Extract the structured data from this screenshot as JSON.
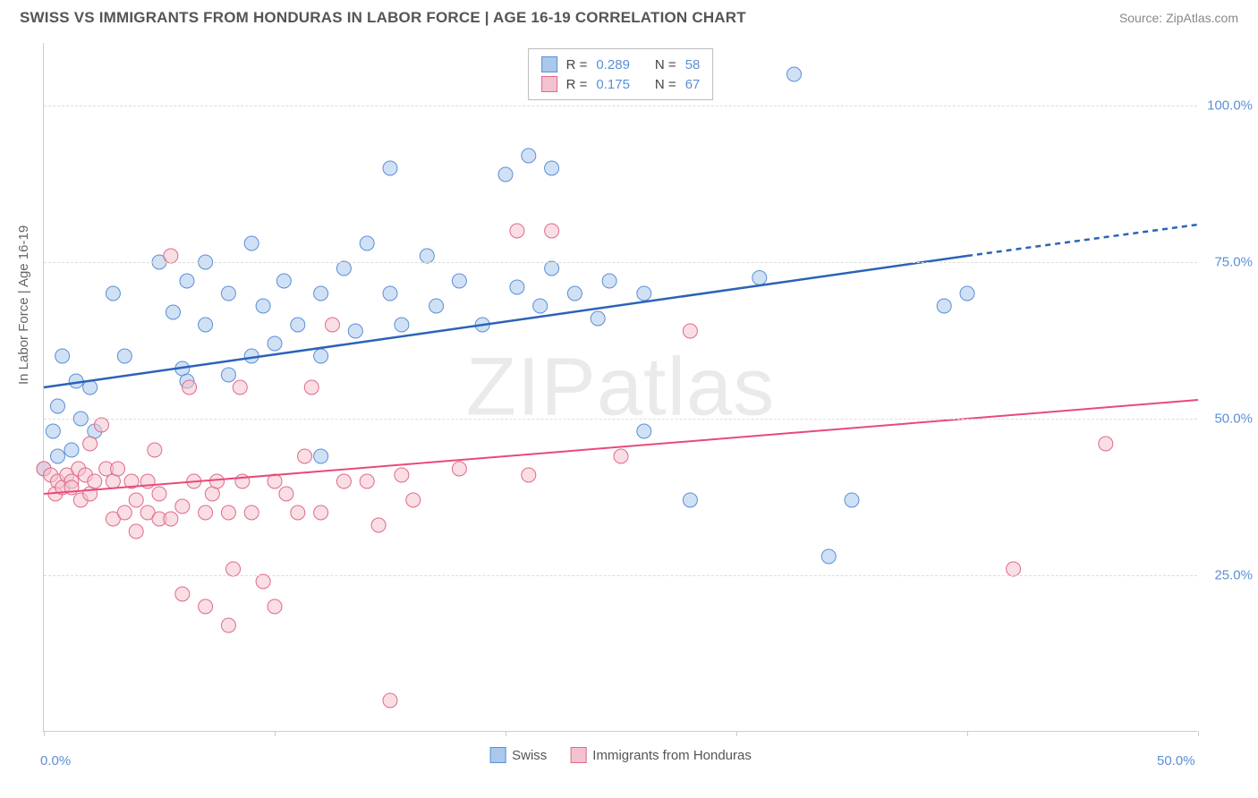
{
  "title": "SWISS VS IMMIGRANTS FROM HONDURAS IN LABOR FORCE | AGE 16-19 CORRELATION CHART",
  "source": "Source: ZipAtlas.com",
  "watermark": "ZIPatlas",
  "y_axis_title": "In Labor Force | Age 16-19",
  "chart": {
    "type": "scatter",
    "xlim": [
      0,
      50
    ],
    "ylim": [
      0,
      110
    ],
    "x_ticks": [
      0,
      10,
      20,
      30,
      40,
      50
    ],
    "x_tick_labels_shown": {
      "0": "0.0%",
      "50": "50.0%"
    },
    "y_gridlines": [
      25,
      50,
      75,
      100
    ],
    "y_tick_labels": {
      "25": "25.0%",
      "50": "50.0%",
      "75": "75.0%",
      "100": "100.0%"
    },
    "background_color": "#ffffff",
    "grid_color": "#dddddd",
    "axis_color": "#cccccc",
    "tick_label_color": "#5b8fd6",
    "marker_radius": 8,
    "marker_opacity": 0.55,
    "series": [
      {
        "name": "Swiss",
        "color_fill": "#a9c8ec",
        "color_stroke": "#5b8fd6",
        "trend_color": "#2a63b8",
        "trend_width": 2.5,
        "r_label": "R =",
        "r_value": "0.289",
        "n_label": "N =",
        "n_value": "58",
        "trend": {
          "x1": 0,
          "y1": 55,
          "x2": 40,
          "y2": 76,
          "x2_dash": 50,
          "y2_dash": 81
        },
        "points": [
          [
            0,
            42
          ],
          [
            0.4,
            48
          ],
          [
            0.6,
            52
          ],
          [
            0.6,
            44
          ],
          [
            0.8,
            60
          ],
          [
            1.2,
            45
          ],
          [
            1.4,
            56
          ],
          [
            1.6,
            50
          ],
          [
            2,
            55
          ],
          [
            2.2,
            48
          ],
          [
            3,
            70
          ],
          [
            3.5,
            60
          ],
          [
            5,
            75
          ],
          [
            5.6,
            67
          ],
          [
            6,
            58
          ],
          [
            6.2,
            56
          ],
          [
            6.2,
            72
          ],
          [
            7,
            65
          ],
          [
            7,
            75
          ],
          [
            8,
            70
          ],
          [
            8,
            57
          ],
          [
            9,
            60
          ],
          [
            9,
            78
          ],
          [
            9.5,
            68
          ],
          [
            10,
            62
          ],
          [
            10.4,
            72
          ],
          [
            11,
            65
          ],
          [
            12,
            70
          ],
          [
            12,
            60
          ],
          [
            12,
            44
          ],
          [
            13,
            74
          ],
          [
            13.5,
            64
          ],
          [
            14,
            78
          ],
          [
            15,
            70
          ],
          [
            15,
            90
          ],
          [
            15.5,
            65
          ],
          [
            16.6,
            76
          ],
          [
            17,
            68
          ],
          [
            18,
            72
          ],
          [
            19,
            65
          ],
          [
            20,
            89
          ],
          [
            20.5,
            71
          ],
          [
            21,
            92
          ],
          [
            21.5,
            68
          ],
          [
            22,
            90
          ],
          [
            22,
            74
          ],
          [
            23,
            70
          ],
          [
            24,
            66
          ],
          [
            24.5,
            72
          ],
          [
            26,
            48
          ],
          [
            26,
            70
          ],
          [
            28,
            37
          ],
          [
            31,
            72.5
          ],
          [
            32.5,
            105
          ],
          [
            34,
            28
          ],
          [
            35,
            37
          ],
          [
            39,
            68
          ],
          [
            40,
            70
          ]
        ]
      },
      {
        "name": "Immigrants from Honduras",
        "color_fill": "#f4c2ce",
        "color_stroke": "#e06a8a",
        "trend_color": "#e84a78",
        "trend_width": 2,
        "r_label": "R =",
        "r_value": "0.175",
        "n_label": "N =",
        "n_value": "67",
        "trend": {
          "x1": 0,
          "y1": 38,
          "x2": 50,
          "y2": 53
        },
        "points": [
          [
            0,
            42
          ],
          [
            0.3,
            41
          ],
          [
            0.5,
            38
          ],
          [
            0.6,
            40
          ],
          [
            0.8,
            39
          ],
          [
            1,
            41
          ],
          [
            1.2,
            40
          ],
          [
            1.2,
            39
          ],
          [
            1.5,
            42
          ],
          [
            1.6,
            37
          ],
          [
            1.8,
            41
          ],
          [
            2,
            38
          ],
          [
            2,
            46
          ],
          [
            2.2,
            40
          ],
          [
            2.5,
            49
          ],
          [
            2.7,
            42
          ],
          [
            3,
            40
          ],
          [
            3,
            34
          ],
          [
            3.2,
            42
          ],
          [
            3.5,
            35
          ],
          [
            3.8,
            40
          ],
          [
            4,
            37
          ],
          [
            4,
            32
          ],
          [
            4.5,
            40
          ],
          [
            4.5,
            35
          ],
          [
            4.8,
            45
          ],
          [
            5,
            34
          ],
          [
            5,
            38
          ],
          [
            5.5,
            76
          ],
          [
            5.5,
            34
          ],
          [
            6,
            22
          ],
          [
            6,
            36
          ],
          [
            6.3,
            55
          ],
          [
            6.5,
            40
          ],
          [
            7,
            20
          ],
          [
            7,
            35
          ],
          [
            7.3,
            38
          ],
          [
            7.5,
            40
          ],
          [
            8,
            35
          ],
          [
            8,
            17
          ],
          [
            8.2,
            26
          ],
          [
            8.5,
            55
          ],
          [
            8.6,
            40
          ],
          [
            9,
            35
          ],
          [
            9.5,
            24
          ],
          [
            10,
            20
          ],
          [
            10,
            40
          ],
          [
            10.5,
            38
          ],
          [
            11,
            35
          ],
          [
            11.3,
            44
          ],
          [
            11.6,
            55
          ],
          [
            12,
            35
          ],
          [
            12.5,
            65
          ],
          [
            13,
            40
          ],
          [
            14,
            40
          ],
          [
            14.5,
            33
          ],
          [
            15,
            5
          ],
          [
            15.5,
            41
          ],
          [
            16,
            37
          ],
          [
            18,
            42
          ],
          [
            20.5,
            80
          ],
          [
            21,
            41
          ],
          [
            22,
            80
          ],
          [
            25,
            44
          ],
          [
            28,
            64
          ],
          [
            42,
            26
          ],
          [
            46,
            46
          ]
        ]
      }
    ]
  },
  "legend_bottom": [
    {
      "label": "Swiss",
      "fill": "#a9c8ec",
      "stroke": "#5b8fd6"
    },
    {
      "label": "Immigrants from Honduras",
      "fill": "#f4c2ce",
      "stroke": "#e06a8a"
    }
  ]
}
